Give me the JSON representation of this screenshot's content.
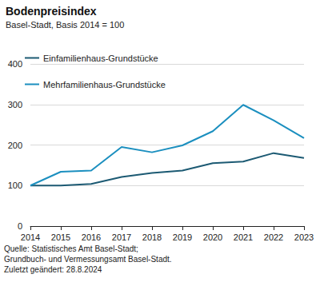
{
  "chart_data": {
    "type": "line",
    "title": "Bodenpreisindex",
    "subtitle": "Basel-Stadt, Basis 2014 = 100",
    "categories": [
      "2014",
      "2015",
      "2016",
      "2017",
      "2018",
      "2019",
      "2020",
      "2021",
      "2022",
      "2023"
    ],
    "series": [
      {
        "name": "Einfamilienhaus-Grundstücke",
        "color": "#1c5a73",
        "values": [
          100,
          100,
          104,
          121,
          131,
          137,
          155,
          159,
          180,
          168
        ]
      },
      {
        "name": "Mehrfamilienhaus-Grundstücke",
        "color": "#1b8fbf",
        "values": [
          100,
          134,
          137,
          195,
          182,
          199,
          234,
          299,
          261,
          217
        ]
      }
    ],
    "ylim": [
      0,
      400
    ],
    "yticks": [
      0,
      100,
      200,
      300,
      400
    ],
    "grid": true,
    "legend": "top",
    "annotations": [
      "Quelle: Statistisches Amt Basel-Stadt;",
      "Grundbuch- und Vermessungsamt Basel-Stadt.",
      "Zuletzt geändert: 28.8.2024"
    ]
  }
}
